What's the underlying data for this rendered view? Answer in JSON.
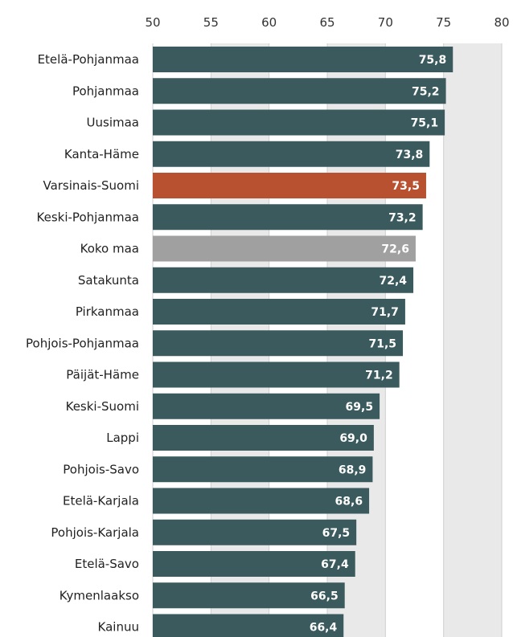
{
  "chart_data": {
    "type": "bar",
    "orientation": "horizontal",
    "title": "",
    "xlabel": "",
    "ylabel": "",
    "xlim": [
      50,
      80
    ],
    "ticks": [
      50,
      55,
      60,
      65,
      70,
      75,
      80
    ],
    "tick_labels": [
      "50",
      "55",
      "60",
      "65",
      "70",
      "75",
      "80"
    ],
    "grid": true,
    "categories": [
      "Etelä-Pohjanmaa",
      "Pohjanmaa",
      "Uusimaa",
      "Kanta-Häme",
      "Varsinais-Suomi",
      "Keski-Pohjanmaa",
      "Koko maa",
      "Satakunta",
      "Pirkanmaa",
      "Pohjois-Pohjanmaa",
      "Päijät-Häme",
      "Keski-Suomi",
      "Lappi",
      "Pohjois-Savo",
      "Etelä-Karjala",
      "Pohjois-Karjala",
      "Etelä-Savo",
      "Kymenlaakso",
      "Kainuu"
    ],
    "values": [
      75.8,
      75.2,
      75.1,
      73.8,
      73.5,
      73.2,
      72.6,
      72.4,
      71.7,
      71.5,
      71.2,
      69.5,
      69.0,
      68.9,
      68.6,
      67.5,
      67.4,
      66.5,
      66.4
    ],
    "value_labels": [
      "75,8",
      "75,2",
      "75,1",
      "73,8",
      "73,5",
      "73,2",
      "72,6",
      "72,4",
      "71,7",
      "71,5",
      "71,2",
      "69,5",
      "69,0",
      "68,9",
      "68,6",
      "67,5",
      "67,4",
      "66,5",
      "66,4"
    ],
    "highlight": {
      "Varsinais-Suomi": "#b85130",
      "Koko maa": "#a0a0a0"
    },
    "colors": {
      "bar": "#3a5a5e",
      "band": "#e9e9e9",
      "grid": "#cfcfcf"
    }
  }
}
